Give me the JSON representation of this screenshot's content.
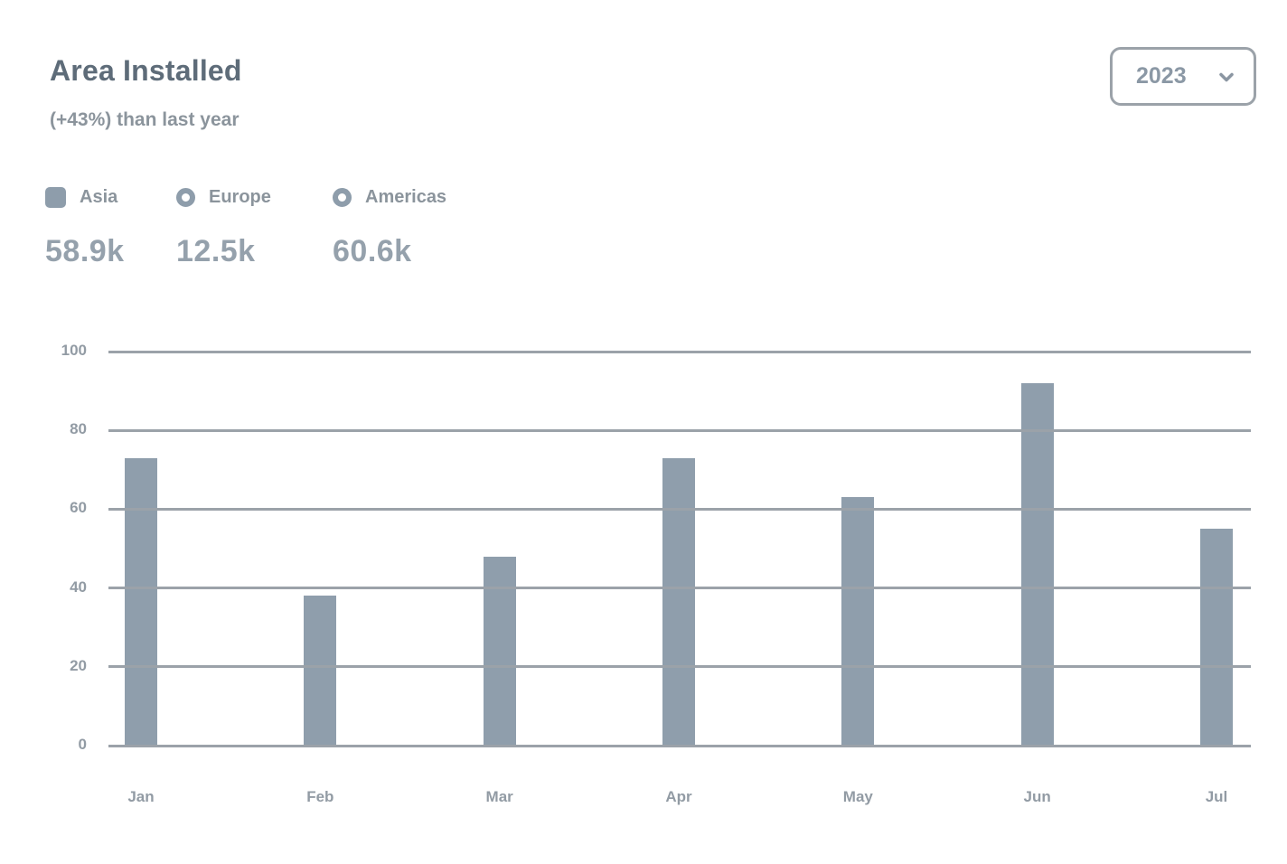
{
  "header": {
    "title": "Area Installed",
    "subtitle": "(+43%) than last year"
  },
  "year_selector": {
    "value": "2023",
    "icon": "chevron-down"
  },
  "legend": {
    "items": [
      {
        "label": "Asia",
        "value": "58.9k",
        "marker": "square"
      },
      {
        "label": "Europe",
        "value": "12.5k",
        "marker": "ring"
      },
      {
        "label": "Americas",
        "value": "60.6k",
        "marker": "ring"
      }
    ]
  },
  "chart_data": {
    "type": "bar",
    "title": "Area Installed",
    "categories": [
      "Jan",
      "Feb",
      "Mar",
      "Apr",
      "May",
      "Jun",
      "Jul"
    ],
    "values": [
      73,
      38,
      48,
      73,
      63,
      92,
      55
    ],
    "xlabel": "",
    "ylabel": "",
    "ylim": [
      0,
      100
    ],
    "yticks": [
      0,
      20,
      40,
      60,
      80,
      100
    ],
    "grid": true,
    "legend_position": "top-left",
    "legend_entries": [
      "Asia",
      "Europe",
      "Americas"
    ],
    "legend_totals": {
      "Asia": "58.9k",
      "Europe": "12.5k",
      "Americas": "60.6k"
    },
    "bar_color": "#8F9EAC"
  },
  "colors": {
    "title": "#5E6C79",
    "subtitle": "#8B949C",
    "legend_label": "#8B949C",
    "legend_value": "#95A1AC",
    "bar": "#8F9EAC",
    "gridline": "#9BA2A9",
    "axis_label": "#929BA4",
    "selector_border": "#9BA2A9",
    "selector_text": "#8B98A5",
    "background": "#FFFFFF"
  }
}
